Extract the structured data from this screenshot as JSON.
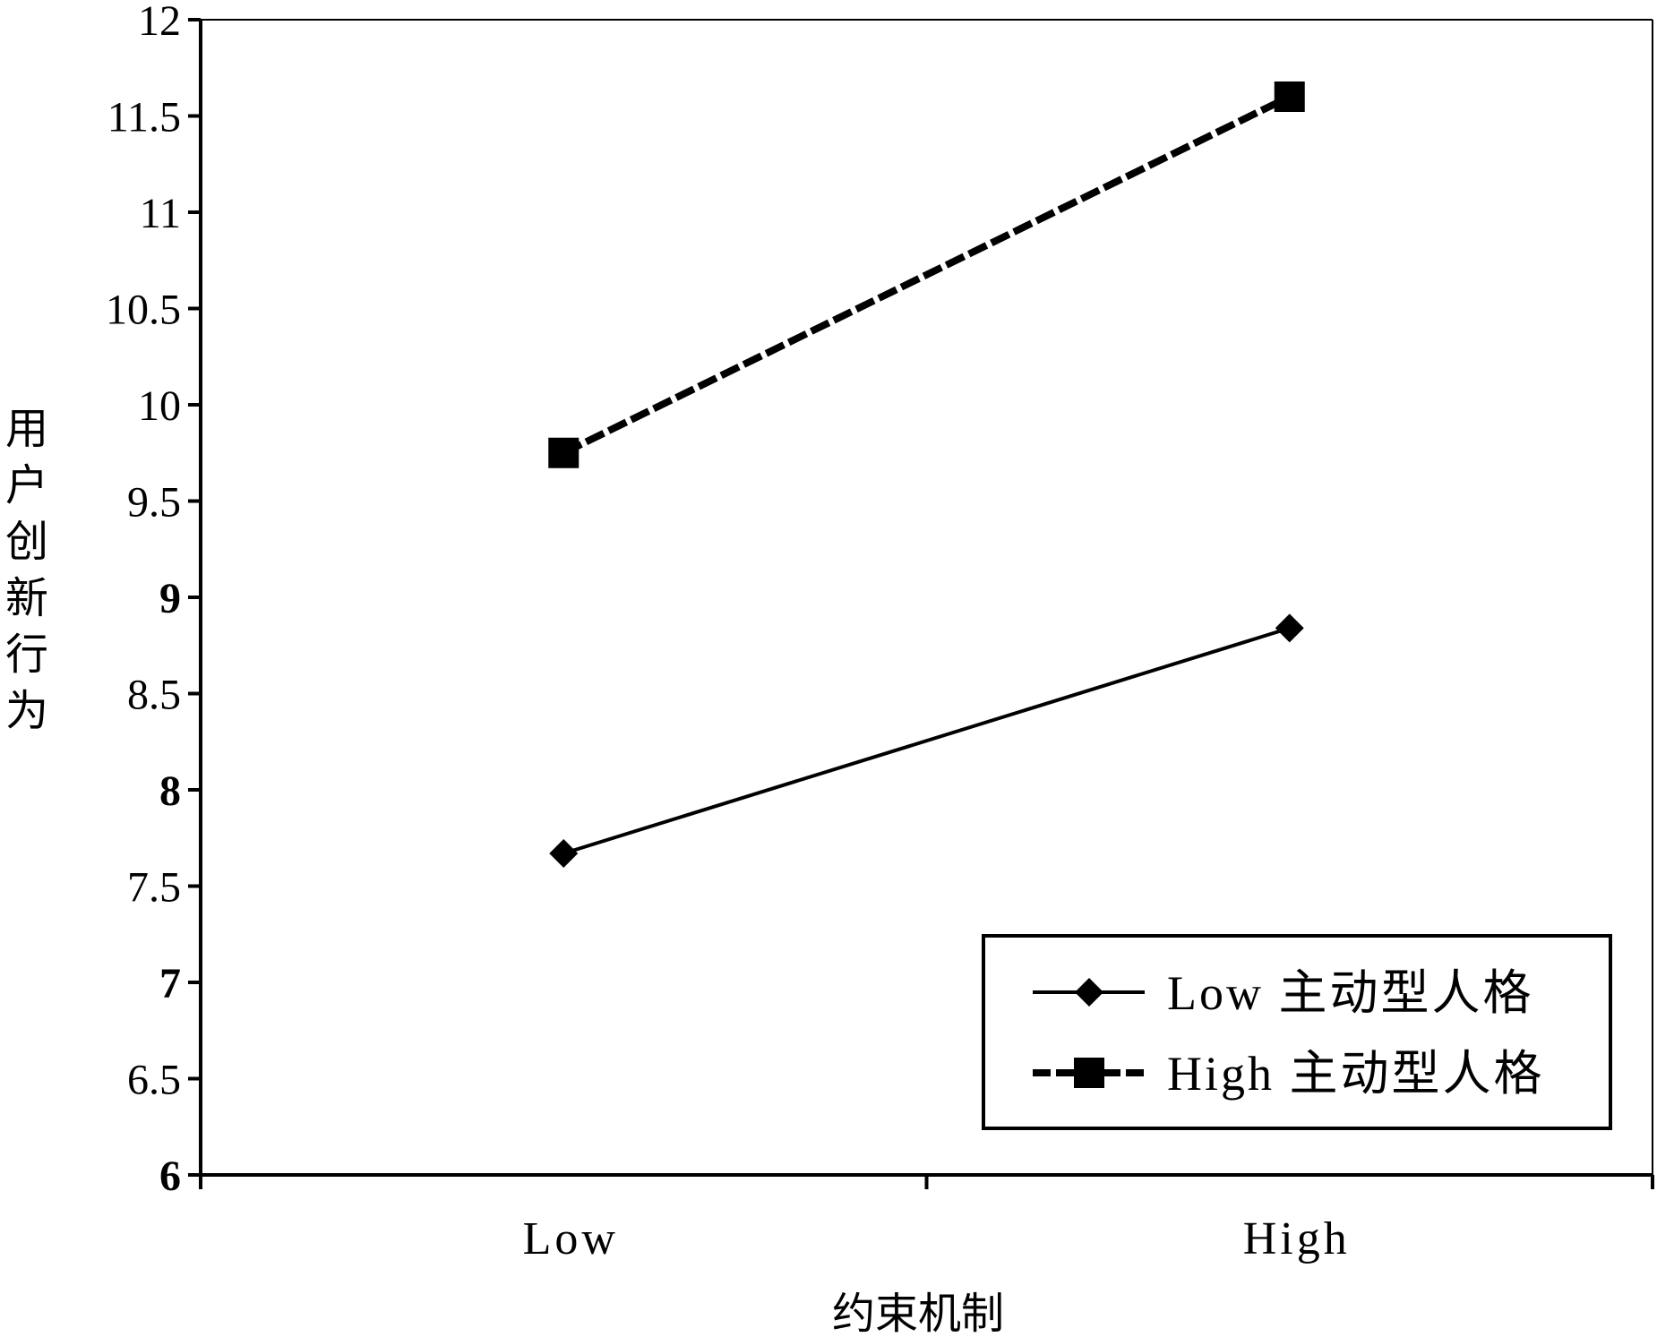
{
  "chart_data": {
    "type": "line",
    "title": "",
    "xlabel": "约束机制",
    "ylabel": "用户创新行为",
    "categories": [
      "Low",
      "High"
    ],
    "ylim": [
      6,
      12
    ],
    "yticks": [
      "6",
      "6.5",
      "7",
      "7.5",
      "8",
      "8.5",
      "9",
      "9.5",
      "10",
      "10.5",
      "11",
      "11.5",
      "12"
    ],
    "bold_yticks": [
      "6",
      "7",
      "8",
      "9"
    ],
    "grid": false,
    "legend_position": "bottom-right",
    "series": [
      {
        "name": "Low 主动型人格",
        "values": [
          7.67,
          8.84
        ],
        "line_style": "solid",
        "marker": "diamond",
        "color": "#000000"
      },
      {
        "name": "High 主动型人格",
        "values": [
          9.75,
          11.6
        ],
        "line_style": "dashed",
        "marker": "square",
        "color": "#000000"
      }
    ]
  }
}
